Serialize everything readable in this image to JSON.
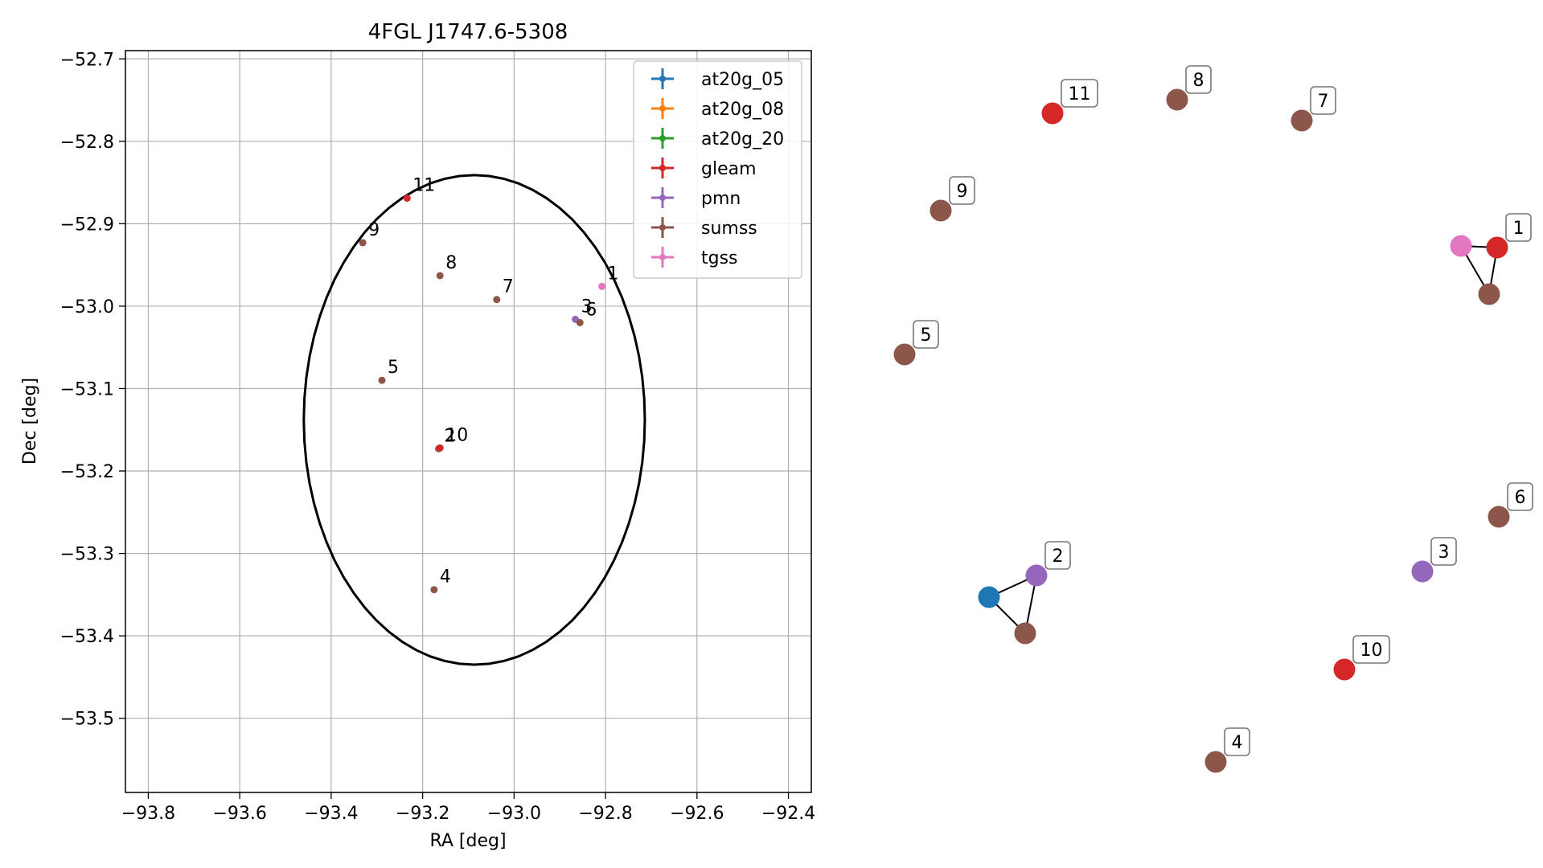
{
  "colors": {
    "at20g_05": "#1f77b4",
    "at20g_08": "#ff7f0e",
    "at20g_20": "#2ca02c",
    "gleam": "#d62728",
    "pmn": "#9467bd",
    "sumss": "#8c564b",
    "tgss": "#e377c2",
    "ellipse": "#000000",
    "grid": "#b0b0b0"
  },
  "chart_data": [
    {
      "type": "scatter",
      "title": "4FGL J1747.6-5308",
      "xlabel": "RA [deg]",
      "ylabel": "Dec [deg]",
      "xlim": [
        -93.85,
        -92.35
      ],
      "ylim": [
        -53.59,
        -52.69
      ],
      "x_ticks": [
        -93.8,
        -93.6,
        -93.4,
        -93.2,
        -93.0,
        -92.8,
        -92.6,
        -92.4
      ],
      "x_tick_labels": [
        "−93.8",
        "−93.6",
        "−93.4",
        "−93.2",
        "−93.0",
        "−92.8",
        "−92.6",
        "−92.4"
      ],
      "y_ticks": [
        -52.7,
        -52.8,
        -52.9,
        -53.0,
        -53.1,
        -53.2,
        -53.3,
        -53.4,
        -53.5
      ],
      "y_tick_labels": [
        "−52.7",
        "−52.8",
        "−52.9",
        "−53.0",
        "−53.1",
        "−53.2",
        "−53.3",
        "−53.4",
        "−53.5"
      ],
      "grid": true,
      "legend_position": "top-right",
      "legend": [
        "at20g_05",
        "at20g_08",
        "at20g_20",
        "gleam",
        "pmn",
        "sumss",
        "tgss"
      ],
      "ellipse": {
        "center": [
          -93.087,
          -53.138
        ],
        "semi_axis_ra": 0.373,
        "semi_axis_dec": 0.297
      },
      "points": [
        {
          "label": "1",
          "catalog": "tgss",
          "ra": -92.808,
          "dec": -52.976
        },
        {
          "label": "2",
          "catalog": "sumss",
          "ra": -93.165,
          "dec": -53.173
        },
        {
          "label": "3",
          "catalog": "pmn",
          "ra": -92.866,
          "dec": -53.016
        },
        {
          "label": "4",
          "catalog": "sumss",
          "ra": -93.175,
          "dec": -53.344
        },
        {
          "label": "5",
          "catalog": "sumss",
          "ra": -93.289,
          "dec": -53.09
        },
        {
          "label": "6",
          "catalog": "sumss",
          "ra": -92.856,
          "dec": -53.02
        },
        {
          "label": "7",
          "catalog": "sumss",
          "ra": -93.038,
          "dec": -52.992
        },
        {
          "label": "8",
          "catalog": "sumss",
          "ra": -93.162,
          "dec": -52.963
        },
        {
          "label": "9",
          "catalog": "sumss",
          "ra": -93.331,
          "dec": -52.923
        },
        {
          "label": "10",
          "catalog": "gleam",
          "ra": -93.162,
          "dec": -53.172
        },
        {
          "label": "11",
          "catalog": "gleam",
          "ra": -93.234,
          "dec": -52.869
        }
      ]
    },
    {
      "type": "network",
      "nodes": [
        {
          "label": "1",
          "catalog": "gleam"
        },
        {
          "label": "",
          "catalog": "tgss"
        },
        {
          "label": "",
          "catalog": "sumss"
        },
        {
          "label": "2",
          "catalog": "pmn"
        },
        {
          "label": "",
          "catalog": "at20g_05"
        },
        {
          "label": "",
          "catalog": "sumss"
        },
        {
          "label": "3",
          "catalog": "pmn"
        },
        {
          "label": "4",
          "catalog": "sumss"
        },
        {
          "label": "5",
          "catalog": "sumss"
        },
        {
          "label": "6",
          "catalog": "sumss"
        },
        {
          "label": "7",
          "catalog": "sumss"
        },
        {
          "label": "8",
          "catalog": "sumss"
        },
        {
          "label": "9",
          "catalog": "sumss"
        },
        {
          "label": "10",
          "catalog": "gleam"
        },
        {
          "label": "11",
          "catalog": "gleam"
        }
      ],
      "edges": [
        [
          0,
          1
        ],
        [
          1,
          2
        ],
        [
          2,
          0
        ],
        [
          3,
          4
        ],
        [
          4,
          5
        ],
        [
          5,
          3
        ]
      ]
    }
  ]
}
